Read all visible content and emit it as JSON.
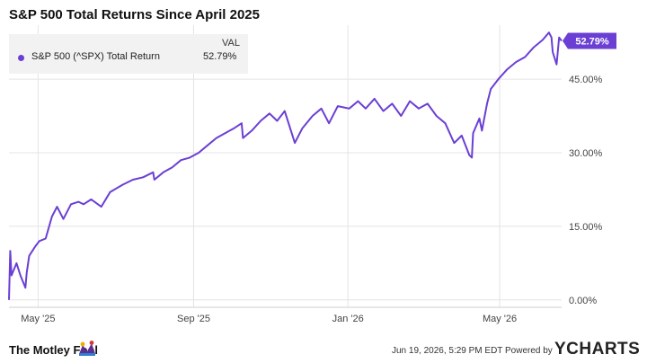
{
  "chart_data": {
    "type": "line",
    "title": "S&P 500 Total Returns Since April 2025",
    "xlabel": "",
    "ylabel": "",
    "x_ticks": [
      "May '25",
      "Sep '25",
      "Jan '26",
      "May '26"
    ],
    "y_ticks": [
      "0.00%",
      "15.00%",
      "30.00%",
      "45.00%"
    ],
    "ylim": [
      -1.5,
      56
    ],
    "grid": true,
    "legend": {
      "placement": "top-left",
      "header": "VAL"
    },
    "series": [
      {
        "name": "S&P 500 (^SPX) Total Return",
        "last_value_label": "52.79%",
        "color": "#6b3fd4",
        "points": [
          [
            "2025-04-08",
            0.0
          ],
          [
            "2025-04-09",
            10.0
          ],
          [
            "2025-04-10",
            5.0
          ],
          [
            "2025-04-14",
            7.5
          ],
          [
            "2025-04-17",
            5.0
          ],
          [
            "2025-04-21",
            2.5
          ],
          [
            "2025-04-22",
            5.5
          ],
          [
            "2025-04-24",
            9.0
          ],
          [
            "2025-04-29",
            11.0
          ],
          [
            "2025-05-02",
            12.0
          ],
          [
            "2025-05-07",
            12.5
          ],
          [
            "2025-05-12",
            17.0
          ],
          [
            "2025-05-16",
            19.0
          ],
          [
            "2025-05-21",
            16.5
          ],
          [
            "2025-05-27",
            19.5
          ],
          [
            "2025-06-02",
            20.0
          ],
          [
            "2025-06-06",
            19.5
          ],
          [
            "2025-06-12",
            20.5
          ],
          [
            "2025-06-20",
            19.0
          ],
          [
            "2025-06-27",
            22.0
          ],
          [
            "2025-07-07",
            23.5
          ],
          [
            "2025-07-15",
            24.5
          ],
          [
            "2025-07-23",
            25.0
          ],
          [
            "2025-07-31",
            26.0
          ],
          [
            "2025-08-01",
            24.5
          ],
          [
            "2025-08-08",
            26.0
          ],
          [
            "2025-08-15",
            27.0
          ],
          [
            "2025-08-22",
            28.5
          ],
          [
            "2025-08-29",
            29.0
          ],
          [
            "2025-09-05",
            30.0
          ],
          [
            "2025-09-12",
            31.5
          ],
          [
            "2025-09-19",
            33.0
          ],
          [
            "2025-09-26",
            34.0
          ],
          [
            "2025-10-03",
            35.0
          ],
          [
            "2025-10-09",
            36.0
          ],
          [
            "2025-10-10",
            33.0
          ],
          [
            "2025-10-17",
            34.5
          ],
          [
            "2025-10-24",
            36.5
          ],
          [
            "2025-10-31",
            38.0
          ],
          [
            "2025-11-06",
            36.5
          ],
          [
            "2025-11-12",
            38.5
          ],
          [
            "2025-11-20",
            32.0
          ],
          [
            "2025-11-26",
            35.0
          ],
          [
            "2025-12-04",
            37.5
          ],
          [
            "2025-12-11",
            39.0
          ],
          [
            "2025-12-17",
            36.0
          ],
          [
            "2025-12-24",
            39.5
          ],
          [
            "2026-01-02",
            39.0
          ],
          [
            "2026-01-09",
            40.5
          ],
          [
            "2026-01-15",
            39.0
          ],
          [
            "2026-01-22",
            41.0
          ],
          [
            "2026-01-29",
            38.5
          ],
          [
            "2026-02-05",
            40.0
          ],
          [
            "2026-02-12",
            37.5
          ],
          [
            "2026-02-19",
            40.5
          ],
          [
            "2026-02-26",
            39.0
          ],
          [
            "2026-03-05",
            40.0
          ],
          [
            "2026-03-12",
            37.5
          ],
          [
            "2026-03-19",
            36.0
          ],
          [
            "2026-03-26",
            32.0
          ],
          [
            "2026-04-01",
            33.5
          ],
          [
            "2026-04-07",
            29.5
          ],
          [
            "2026-04-09",
            29.0
          ],
          [
            "2026-04-10",
            34.0
          ],
          [
            "2026-04-15",
            37.0
          ],
          [
            "2026-04-17",
            34.5
          ],
          [
            "2026-04-21",
            40.0
          ],
          [
            "2026-04-24",
            43.0
          ],
          [
            "2026-04-30",
            45.0
          ],
          [
            "2026-05-07",
            47.0
          ],
          [
            "2026-05-14",
            48.5
          ],
          [
            "2026-05-21",
            49.5
          ],
          [
            "2026-05-28",
            51.5
          ],
          [
            "2026-06-04",
            53.0
          ],
          [
            "2026-06-09",
            54.5
          ],
          [
            "2026-06-11",
            53.5
          ],
          [
            "2026-06-12",
            50.5
          ],
          [
            "2026-06-15",
            48.0
          ],
          [
            "2026-06-17",
            53.5
          ],
          [
            "2026-06-19",
            52.79
          ]
        ]
      }
    ]
  },
  "footer": {
    "brand": "The Motley Fool",
    "timestamp": "Jun 19, 2026, 5:29 PM EDT Powered by",
    "provider": "YCHARTS"
  },
  "colors": {
    "line": "#6b3fd4",
    "grid": "#e4e4e4",
    "label_bg": "#6b3fd4"
  }
}
